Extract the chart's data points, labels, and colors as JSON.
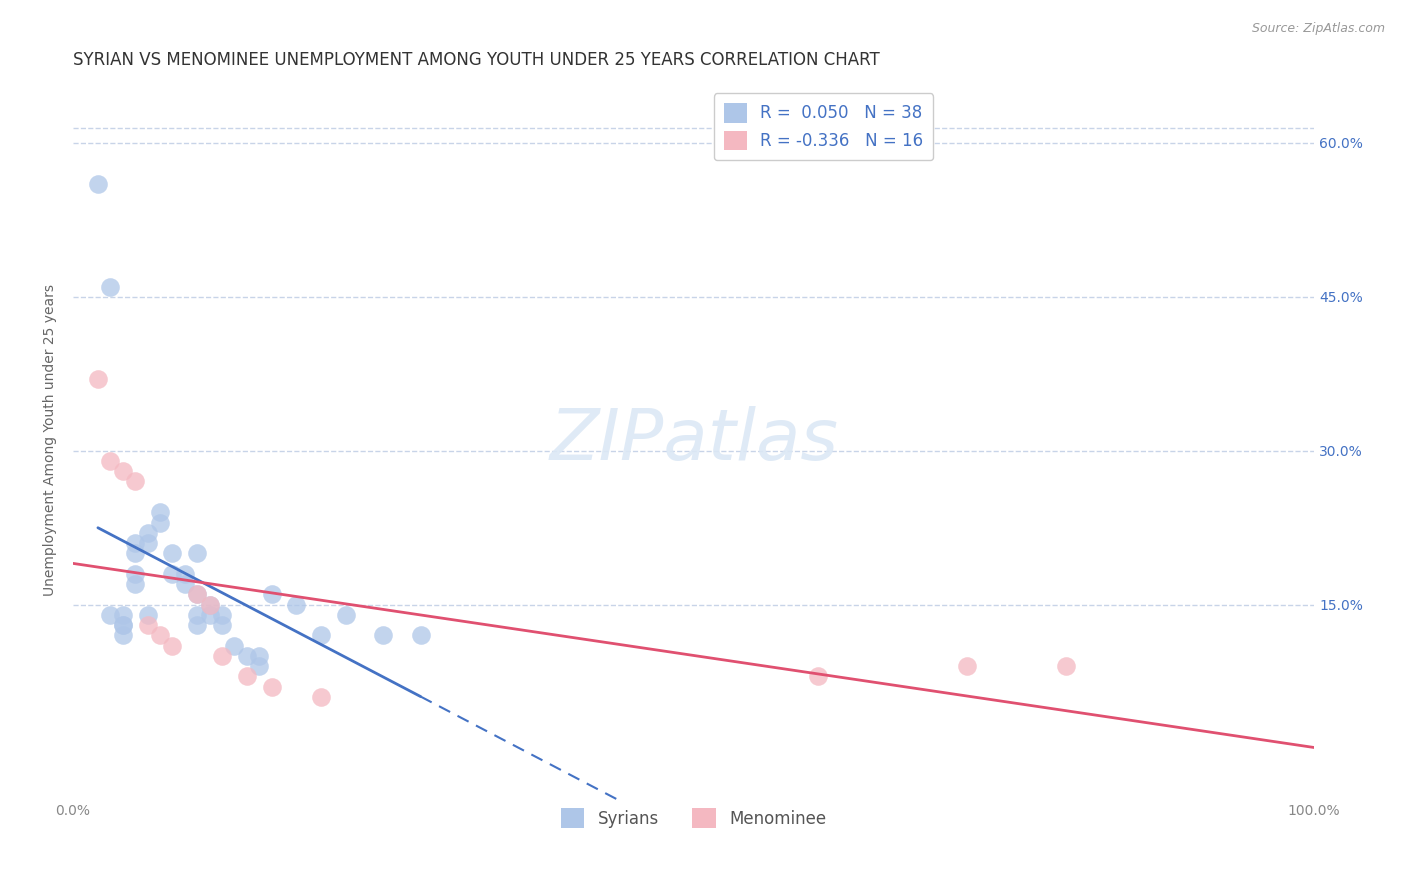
{
  "title": "SYRIAN VS MENOMINEE UNEMPLOYMENT AMONG YOUTH UNDER 25 YEARS CORRELATION CHART",
  "source": "Source: ZipAtlas.com",
  "ylabel": "Unemployment Among Youth under 25 years",
  "right_ytick_labels": [
    "15.0%",
    "30.0%",
    "45.0%",
    "60.0%"
  ],
  "right_ytick_values": [
    0.15,
    0.3,
    0.45,
    0.6
  ],
  "xlim": [
    0.0,
    1.0
  ],
  "ylim": [
    -0.04,
    0.66
  ],
  "legend_R_syrian": "0.050",
  "legend_N_syrian": "38",
  "legend_R_menominee": "-0.336",
  "legend_N_menominee": "16",
  "syrian_color": "#aec6e8",
  "menominee_color": "#f4b8c1",
  "syrian_line_color": "#4472c4",
  "menominee_line_color": "#e05070",
  "watermark": "ZIPatlas",
  "syrians_label": "Syrians",
  "menominee_label": "Menominee",
  "syrian_points_x": [
    0.02,
    0.03,
    0.03,
    0.04,
    0.04,
    0.04,
    0.04,
    0.05,
    0.05,
    0.05,
    0.05,
    0.06,
    0.06,
    0.06,
    0.07,
    0.07,
    0.08,
    0.08,
    0.09,
    0.09,
    0.1,
    0.1,
    0.1,
    0.1,
    0.11,
    0.11,
    0.12,
    0.12,
    0.13,
    0.14,
    0.15,
    0.15,
    0.16,
    0.18,
    0.2,
    0.22,
    0.25,
    0.28
  ],
  "syrian_points_y": [
    0.56,
    0.46,
    0.14,
    0.14,
    0.13,
    0.13,
    0.12,
    0.21,
    0.2,
    0.18,
    0.17,
    0.22,
    0.21,
    0.14,
    0.24,
    0.23,
    0.2,
    0.18,
    0.18,
    0.17,
    0.2,
    0.16,
    0.14,
    0.13,
    0.15,
    0.14,
    0.14,
    0.13,
    0.11,
    0.1,
    0.1,
    0.09,
    0.16,
    0.15,
    0.12,
    0.14,
    0.12,
    0.12
  ],
  "menominee_points_x": [
    0.02,
    0.03,
    0.04,
    0.05,
    0.06,
    0.07,
    0.08,
    0.1,
    0.11,
    0.12,
    0.14,
    0.16,
    0.2,
    0.6,
    0.72,
    0.8
  ],
  "menominee_points_y": [
    0.37,
    0.29,
    0.28,
    0.27,
    0.13,
    0.12,
    0.11,
    0.16,
    0.15,
    0.1,
    0.08,
    0.07,
    0.06,
    0.08,
    0.09,
    0.09
  ],
  "background_color": "#ffffff",
  "grid_color": "#c8d4e8",
  "title_fontsize": 12,
  "axis_label_fontsize": 10,
  "tick_fontsize": 10,
  "legend_fontsize": 12,
  "watermark_fontsize": 52,
  "scatter_size": 180,
  "scatter_alpha": 0.75
}
